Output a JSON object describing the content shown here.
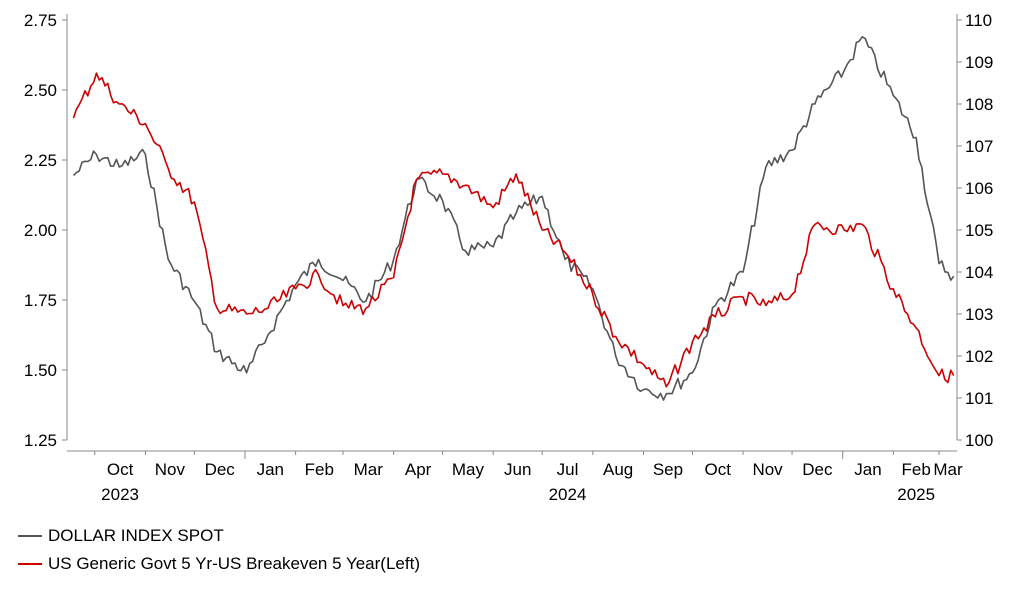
{
  "chart_data": {
    "type": "line",
    "title": "",
    "xlabel": "",
    "ylabel": "",
    "left_axis": {
      "ylim": [
        1.25,
        2.75
      ],
      "ticks": [
        "1.25",
        "1.50",
        "1.75",
        "2.00",
        "2.25",
        "2.50",
        "2.75"
      ]
    },
    "right_axis": {
      "ylim": [
        100,
        110
      ],
      "ticks": [
        "100",
        "101",
        "102",
        "103",
        "104",
        "105",
        "106",
        "107",
        "108",
        "109",
        "110"
      ]
    },
    "x_month_labels": [
      "Oct",
      "Nov",
      "Dec",
      "Jan",
      "Feb",
      "Mar",
      "Apr",
      "May",
      "Jun",
      "Jul",
      "Aug",
      "Sep",
      "Oct",
      "Nov",
      "Dec",
      "Jan",
      "Feb",
      "Mar"
    ],
    "x_year_labels": [
      "2023",
      "2024",
      "2025"
    ],
    "grid": false,
    "legend_position": "bottom-left",
    "colors": {
      "dollar": "#555555",
      "breakeven": "#cc0000",
      "axis": "#888888"
    },
    "series": [
      {
        "name": "DOLLAR INDEX SPOT",
        "axis": "right",
        "x": [
          "2023-09-18",
          "2023-10-02",
          "2023-10-16",
          "2023-11-01",
          "2023-11-15",
          "2023-12-01",
          "2023-12-15",
          "2024-01-02",
          "2024-01-15",
          "2024-02-01",
          "2024-02-15",
          "2024-03-01",
          "2024-03-15",
          "2024-04-01",
          "2024-04-15",
          "2024-05-01",
          "2024-05-15",
          "2024-06-01",
          "2024-06-15",
          "2024-07-01",
          "2024-07-15",
          "2024-08-01",
          "2024-08-15",
          "2024-09-01",
          "2024-09-15",
          "2024-10-01",
          "2024-10-15",
          "2024-11-01",
          "2024-11-15",
          "2024-12-01",
          "2024-12-15",
          "2025-01-02",
          "2025-01-13",
          "2025-02-01",
          "2025-02-15",
          "2025-03-01",
          "2025-03-10"
        ],
        "values": [
          106.3,
          106.8,
          106.5,
          106.8,
          104.3,
          103.3,
          102.1,
          101.6,
          102.5,
          103.7,
          104.3,
          103.8,
          103.3,
          104.3,
          106.2,
          105.7,
          104.5,
          104.6,
          105.4,
          105.8,
          104.3,
          103.6,
          102.0,
          101.2,
          101.1,
          101.6,
          103.2,
          104.0,
          106.5,
          106.9,
          108.0,
          108.8,
          109.6,
          108.2,
          107.2,
          104.2,
          103.9
        ]
      },
      {
        "name": "US Generic Govt 5 Yr-US Breakeven 5 Year(Left)",
        "axis": "left",
        "x": [
          "2023-09-18",
          "2023-10-02",
          "2023-10-16",
          "2023-11-01",
          "2023-11-15",
          "2023-12-01",
          "2023-12-15",
          "2024-01-02",
          "2024-01-15",
          "2024-02-01",
          "2024-02-15",
          "2024-03-01",
          "2024-03-15",
          "2024-04-01",
          "2024-04-15",
          "2024-05-01",
          "2024-05-15",
          "2024-06-01",
          "2024-06-15",
          "2024-07-01",
          "2024-07-15",
          "2024-08-01",
          "2024-08-15",
          "2024-09-01",
          "2024-09-15",
          "2024-10-01",
          "2024-10-15",
          "2024-11-01",
          "2024-11-15",
          "2024-12-01",
          "2024-12-15",
          "2025-01-02",
          "2025-01-13",
          "2025-02-01",
          "2025-02-15",
          "2025-03-01",
          "2025-03-10"
        ],
        "values": [
          2.4,
          2.56,
          2.45,
          2.38,
          2.22,
          2.1,
          1.72,
          1.7,
          1.72,
          1.79,
          1.84,
          1.73,
          1.72,
          1.83,
          2.18,
          2.2,
          2.16,
          2.08,
          2.2,
          2.0,
          1.92,
          1.77,
          1.62,
          1.52,
          1.44,
          1.6,
          1.69,
          1.76,
          1.73,
          1.77,
          2.02,
          2.0,
          2.02,
          1.79,
          1.65,
          1.48,
          1.48
        ]
      }
    ]
  }
}
